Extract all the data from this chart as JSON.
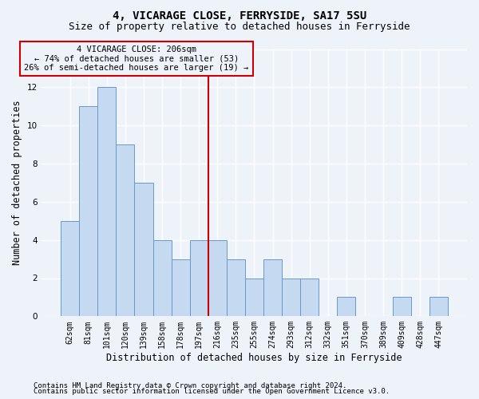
{
  "title": "4, VICARAGE CLOSE, FERRYSIDE, SA17 5SU",
  "subtitle": "Size of property relative to detached houses in Ferryside",
  "xlabel": "Distribution of detached houses by size in Ferryside",
  "ylabel": "Number of detached properties",
  "categories": [
    "62sqm",
    "81sqm",
    "101sqm",
    "120sqm",
    "139sqm",
    "158sqm",
    "178sqm",
    "197sqm",
    "216sqm",
    "235sqm",
    "255sqm",
    "274sqm",
    "293sqm",
    "312sqm",
    "332sqm",
    "351sqm",
    "370sqm",
    "389sqm",
    "409sqm",
    "428sqm",
    "447sqm"
  ],
  "values": [
    5,
    11,
    12,
    9,
    7,
    4,
    3,
    4,
    4,
    3,
    2,
    3,
    2,
    2,
    0,
    1,
    0,
    0,
    1,
    0,
    1
  ],
  "bar_color": "#c5d9f0",
  "bar_edge_color": "#6699cc",
  "vline_color": "#cc0000",
  "annotation_title": "4 VICARAGE CLOSE: 206sqm",
  "annotation_line1": "← 74% of detached houses are smaller (53)",
  "annotation_line2": "26% of semi-detached houses are larger (19) →",
  "annotation_box_color": "#cc0000",
  "ylim": [
    0,
    14
  ],
  "yticks": [
    0,
    2,
    4,
    6,
    8,
    10,
    12,
    14
  ],
  "footnote1": "Contains HM Land Registry data © Crown copyright and database right 2024.",
  "footnote2": "Contains public sector information licensed under the Open Government Licence v3.0.",
  "background_color": "#eef2f9",
  "grid_color": "#ffffff",
  "title_fontsize": 10,
  "subtitle_fontsize": 9,
  "label_fontsize": 8.5,
  "tick_fontsize": 7,
  "annotation_fontsize": 7.5,
  "footnote_fontsize": 6.5
}
